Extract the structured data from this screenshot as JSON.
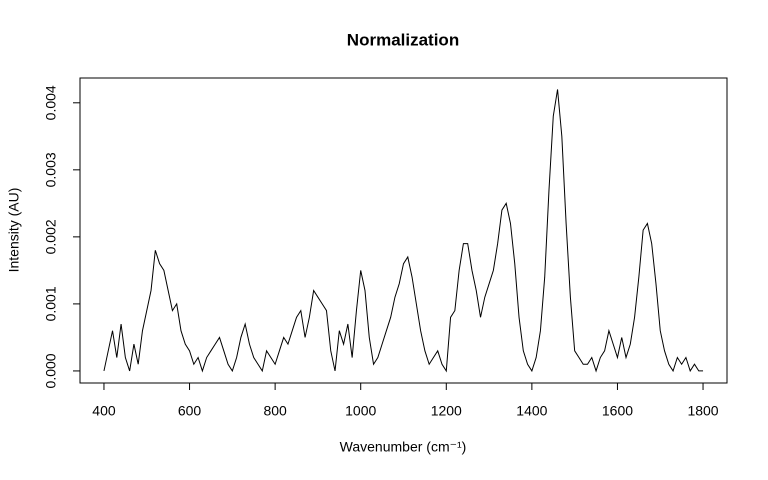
{
  "chart_data": {
    "type": "line",
    "title": "Normalization",
    "x_label": "Wavenumber (cm⁻¹)",
    "y_label": "Intensity (AU)",
    "x": [
      400,
      410,
      420,
      430,
      440,
      450,
      460,
      470,
      480,
      490,
      500,
      510,
      520,
      530,
      540,
      550,
      560,
      570,
      580,
      590,
      600,
      610,
      620,
      630,
      640,
      650,
      660,
      670,
      680,
      690,
      700,
      710,
      720,
      730,
      740,
      750,
      760,
      770,
      780,
      790,
      800,
      810,
      820,
      830,
      840,
      850,
      860,
      870,
      880,
      890,
      900,
      910,
      920,
      930,
      940,
      950,
      960,
      970,
      980,
      990,
      1000,
      1010,
      1020,
      1030,
      1040,
      1050,
      1060,
      1070,
      1080,
      1090,
      1100,
      1110,
      1120,
      1130,
      1140,
      1150,
      1160,
      1170,
      1180,
      1190,
      1200,
      1210,
      1220,
      1230,
      1240,
      1250,
      1260,
      1270,
      1280,
      1290,
      1300,
      1310,
      1320,
      1330,
      1340,
      1350,
      1360,
      1370,
      1380,
      1390,
      1400,
      1410,
      1420,
      1430,
      1440,
      1450,
      1460,
      1470,
      1480,
      1490,
      1500,
      1510,
      1520,
      1530,
      1540,
      1550,
      1560,
      1570,
      1580,
      1590,
      1600,
      1610,
      1620,
      1630,
      1640,
      1650,
      1660,
      1670,
      1680,
      1690,
      1700,
      1710,
      1720,
      1730,
      1740,
      1750,
      1760,
      1770,
      1780,
      1790,
      1800
    ],
    "series": [
      {
        "color": "#000000",
        "values": [
          0,
          0.0003,
          0.0006,
          0.0002,
          0.0007,
          0.0002,
          0,
          0.0004,
          0.0001,
          0.0006,
          0.0009,
          0.0012,
          0.0018,
          0.0016,
          0.0015,
          0.0012,
          0.0009,
          0.001,
          0.0006,
          0.0004,
          0.0003,
          0.0001,
          0.0002,
          0,
          0.0002,
          0.0003,
          0.0004,
          0.0005,
          0.0003,
          0.0001,
          0,
          0.0002,
          0.0005,
          0.0007,
          0.0004,
          0.0002,
          0.0001,
          0,
          0.0003,
          0.0002,
          0.0001,
          0.0003,
          0.0005,
          0.0004,
          0.0006,
          0.0008,
          0.0009,
          0.0005,
          0.0008,
          0.0012,
          0.0011,
          0.001,
          0.0009,
          0.0003,
          0,
          0.0006,
          0.0004,
          0.0007,
          0.0002,
          0.0009,
          0.0015,
          0.0012,
          0.0005,
          0.0001,
          0.0002,
          0.0004,
          0.0006,
          0.0008,
          0.0011,
          0.0013,
          0.0016,
          0.0017,
          0.0014,
          0.001,
          0.0006,
          0.0003,
          0.0001,
          0.0002,
          0.0003,
          0.0001,
          0,
          0.0008,
          0.0009,
          0.0015,
          0.0019,
          0.0019,
          0.0015,
          0.0012,
          0.0008,
          0.0011,
          0.0013,
          0.0015,
          0.0019,
          0.0024,
          0.0025,
          0.0022,
          0.0016,
          0.0008,
          0.0003,
          0.0001,
          0,
          0.0002,
          0.0006,
          0.0014,
          0.0027,
          0.0038,
          0.0042,
          0.0035,
          0.0022,
          0.0011,
          0.0003,
          0.0002,
          0.0001,
          0.0001,
          0.0002,
          0,
          0.0002,
          0.0003,
          0.0006,
          0.0004,
          0.0002,
          0.0005,
          0.0002,
          0.0004,
          0.0008,
          0.0014,
          0.0021,
          0.0022,
          0.0019,
          0.0013,
          0.0006,
          0.0003,
          0.0001,
          0,
          0.0002,
          0.0001,
          0.0002,
          0,
          0.0001,
          0,
          0
        ]
      }
    ],
    "xlim": [
      344,
      1856
    ],
    "ylim": [
      -0.00018,
      0.00437
    ],
    "xticks": [
      400,
      600,
      800,
      1000,
      1200,
      1400,
      1600,
      1800
    ],
    "yticks": [
      {
        "value": 0,
        "label": "0.000"
      },
      {
        "value": 0.001,
        "label": "0.001"
      },
      {
        "value": 0.002,
        "label": "0.002"
      },
      {
        "value": 0.003,
        "label": "0.003"
      },
      {
        "value": 0.004,
        "label": "0.004"
      }
    ]
  }
}
